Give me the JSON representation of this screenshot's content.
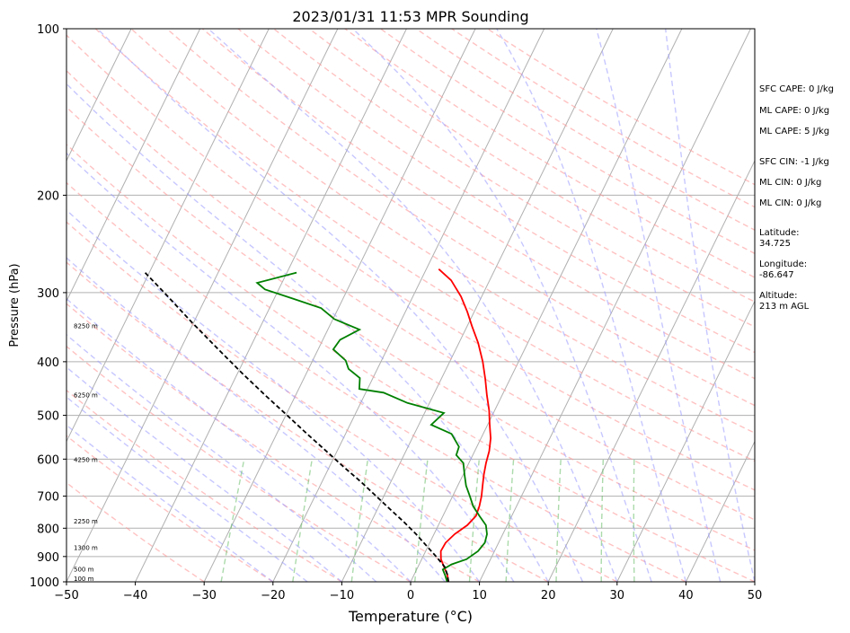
{
  "chart_data": {
    "type": "line",
    "title": "2023/01/31 11:53 MPR Sounding",
    "xlabel": "Temperature (°C)",
    "ylabel": "Pressure (hPa)",
    "xlim": [
      -50,
      50
    ],
    "ylim": [
      1000,
      100
    ],
    "y_scale": "log",
    "skew": true,
    "grid": true,
    "x_ticks": [
      "−50",
      "−40",
      "−30",
      "−20",
      "−10",
      "0",
      "10",
      "20",
      "30",
      "40",
      "50"
    ],
    "y_ticks": [
      "100",
      "200",
      "300",
      "400",
      "500",
      "600",
      "700",
      "800",
      "900",
      "1000"
    ],
    "height_labels": [
      {
        "label": "100 m",
        "pressure": 988
      },
      {
        "label": "500 m",
        "pressure": 951
      },
      {
        "label": "1300 m",
        "pressure": 869
      },
      {
        "label": "2250 m",
        "pressure": 778
      },
      {
        "label": "4250 m",
        "pressure": 603
      },
      {
        "label": "6250 m",
        "pressure": 460
      },
      {
        "label": "8250 m",
        "pressure": 345
      }
    ],
    "series": [
      {
        "color": "#ff0000",
        "points": [
          [
            5.5,
            1000
          ],
          [
            4.8,
            970
          ],
          [
            3.8,
            940
          ],
          [
            2.8,
            910
          ],
          [
            2.2,
            880
          ],
          [
            2.3,
            850
          ],
          [
            3.0,
            820
          ],
          [
            4.2,
            790
          ],
          [
            4.8,
            760
          ],
          [
            4.6,
            730
          ],
          [
            4.2,
            700
          ],
          [
            3.6,
            670
          ],
          [
            3.0,
            640
          ],
          [
            2.5,
            610
          ],
          [
            2.1,
            580
          ],
          [
            1.4,
            550
          ],
          [
            0.3,
            520
          ],
          [
            -0.8,
            490
          ],
          [
            -2.2,
            460
          ],
          [
            -3.6,
            430
          ],
          [
            -5.2,
            400
          ],
          [
            -7.2,
            370
          ],
          [
            -9.3,
            345
          ],
          [
            -11.0,
            325
          ],
          [
            -13.0,
            305
          ],
          [
            -15.6,
            285
          ],
          [
            -18.2,
            272
          ]
        ]
      },
      {
        "color": "#008000",
        "points": [
          [
            5.3,
            1000
          ],
          [
            4.6,
            975
          ],
          [
            3.8,
            950
          ],
          [
            4.7,
            930
          ],
          [
            6.5,
            910
          ],
          [
            7.6,
            880
          ],
          [
            8.0,
            850
          ],
          [
            7.7,
            820
          ],
          [
            6.9,
            790
          ],
          [
            5.3,
            760
          ],
          [
            3.7,
            730
          ],
          [
            2.5,
            700
          ],
          [
            1.2,
            670
          ],
          [
            0.2,
            640
          ],
          [
            -0.8,
            610
          ],
          [
            -2.4,
            590
          ],
          [
            -2.6,
            570
          ],
          [
            -4.6,
            540
          ],
          [
            -8.2,
            520
          ],
          [
            -7.2,
            495
          ],
          [
            -13.2,
            475
          ],
          [
            -17.4,
            455
          ],
          [
            -21.2,
            448
          ],
          [
            -21.9,
            428
          ],
          [
            -24.2,
            412
          ],
          [
            -25.2,
            398
          ],
          [
            -27.8,
            380
          ],
          [
            -27.5,
            365
          ],
          [
            -25.4,
            350
          ],
          [
            -29.8,
            335
          ],
          [
            -32.5,
            320
          ],
          [
            -37.5,
            307
          ],
          [
            -42.0,
            296
          ],
          [
            -43.6,
            288
          ],
          [
            -38.6,
            276
          ]
        ]
      },
      {
        "color": "#000000",
        "dashed": true,
        "points": [
          [
            5.5,
            1000
          ],
          [
            4.8,
            970
          ],
          [
            3.9,
            940
          ],
          [
            1.9,
            900
          ],
          [
            -0.3,
            860
          ],
          [
            -2.6,
            820
          ],
          [
            -5.2,
            780
          ],
          [
            -8.1,
            740
          ],
          [
            -11.1,
            700
          ],
          [
            -14.3,
            660
          ],
          [
            -17.9,
            620
          ],
          [
            -21.6,
            580
          ],
          [
            -25.6,
            540
          ],
          [
            -29.8,
            500
          ],
          [
            -34.4,
            460
          ],
          [
            -39.3,
            420
          ],
          [
            -44.5,
            380
          ],
          [
            -50.2,
            340
          ],
          [
            -56.4,
            300
          ],
          [
            -60.8,
            275
          ]
        ]
      }
    ],
    "stats": [
      "SFC CAPE: 0 J/kg",
      "ML CAPE: 0 J/kg",
      "ML CAPE: 5 J/kg",
      "SFC CIN: -1 J/kg",
      "ML CIN: 0 J/kg",
      "ML CIN: 0 J/kg",
      "Latitude:",
      "34.725",
      "Longitude:",
      "-86.647",
      "Altitude:",
      "213 m AGL"
    ]
  }
}
